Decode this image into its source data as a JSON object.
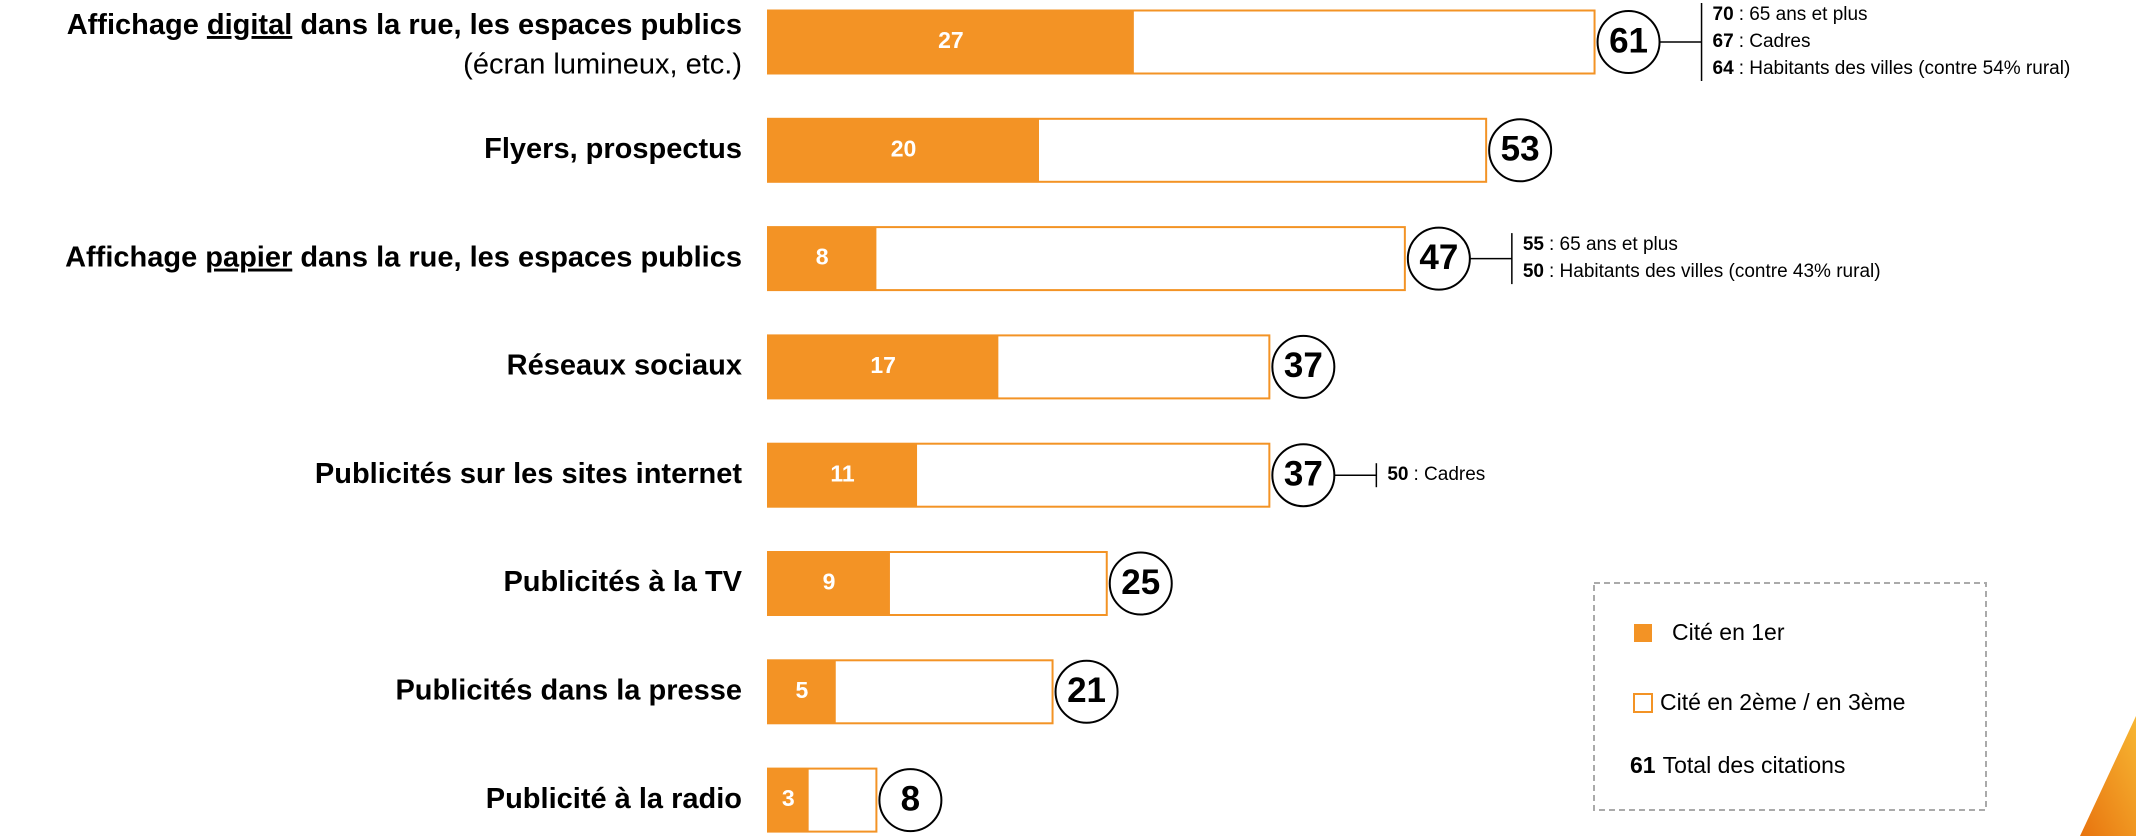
{
  "chart_data": {
    "type": "bar",
    "categories": [
      {
        "pre": "Affichage ",
        "u": "digital",
        "post": " dans la rue, les espaces publics"
      },
      "Flyers, prospectus",
      {
        "pre": "Affichage ",
        "u": "papier",
        "post": " dans la rue, les espaces publics"
      },
      "Réseaux sociaux",
      "Publicités sur les sites internet",
      "Publicités à la TV",
      "Publicités dans la presse",
      "Publicité à la radio"
    ],
    "category_notes": [
      "(écran lumineux, etc.)",
      null,
      null,
      null,
      null,
      null,
      null,
      null
    ],
    "series": [
      {
        "name": "Cité en 1er",
        "color": "#f39325",
        "values": [
          27,
          20,
          8,
          17,
          11,
          9,
          5,
          3
        ]
      },
      {
        "name": "Cité en 2ème / en 3ème",
        "color": "#ffffff",
        "values": [
          61,
          53,
          47,
          37,
          37,
          25,
          21,
          8
        ]
      }
    ],
    "total_legend": {
      "value": 61,
      "label": "Total des citations"
    },
    "notes": [
      [
        {
          "value": 70,
          "label": ": 65 ans et plus"
        },
        {
          "value": 67,
          "label": ": Cadres"
        },
        {
          "value": 64,
          "label": ": Habitants des villes (contre 54% rural)"
        }
      ],
      null,
      [
        {
          "value": 55,
          "label": ": 65 ans et plus"
        },
        {
          "value": 50,
          "label": ": Habitants des villes (contre 43% rural)"
        }
      ],
      null,
      [
        {
          "value": 50,
          "label": ": Cadres"
        }
      ],
      null,
      null,
      null
    ]
  }
}
